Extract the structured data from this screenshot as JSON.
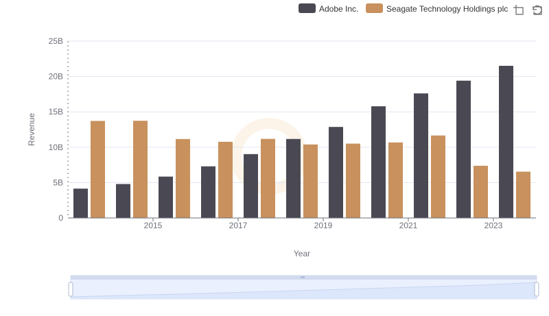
{
  "colors": {
    "adobe": "#4a4953",
    "seagate": "#c8915e",
    "grid": "#e0e6f1",
    "axis": "#6e7079",
    "zoom_fill": "#d6e2f8",
    "zoom_border": "#b6c6e6"
  },
  "toolbox": {
    "icons": [
      "zoom-icon",
      "restore-icon"
    ]
  },
  "chart_data": {
    "type": "bar",
    "xlabel": "Year",
    "ylabel": "Revenue",
    "ylim": [
      0,
      25000000000
    ],
    "y_ticks": [
      "0",
      "5B",
      "10B",
      "15B",
      "20B",
      "25B"
    ],
    "categories": [
      "2014",
      "2015",
      "2016",
      "2017",
      "2018",
      "2019",
      "2020",
      "2021",
      "2022",
      "2023",
      "2024"
    ],
    "x_tick_labels": [
      "2015",
      "2017",
      "2019",
      "2021",
      "2023"
    ],
    "legend_position": "top-right",
    "grid": true,
    "series": [
      {
        "name": "Adobe Inc.",
        "values": [
          4150000000,
          4800000000,
          5850000000,
          7300000000,
          9030000000,
          11170000000,
          12870000000,
          15790000000,
          17610000000,
          19410000000,
          21510000000
        ]
      },
      {
        "name": "Seagate Technology Holdings plc",
        "values": [
          13720000000,
          13740000000,
          11160000000,
          10770000000,
          11180000000,
          10390000000,
          10510000000,
          10680000000,
          11660000000,
          7380000000,
          6550000000
        ]
      }
    ]
  }
}
